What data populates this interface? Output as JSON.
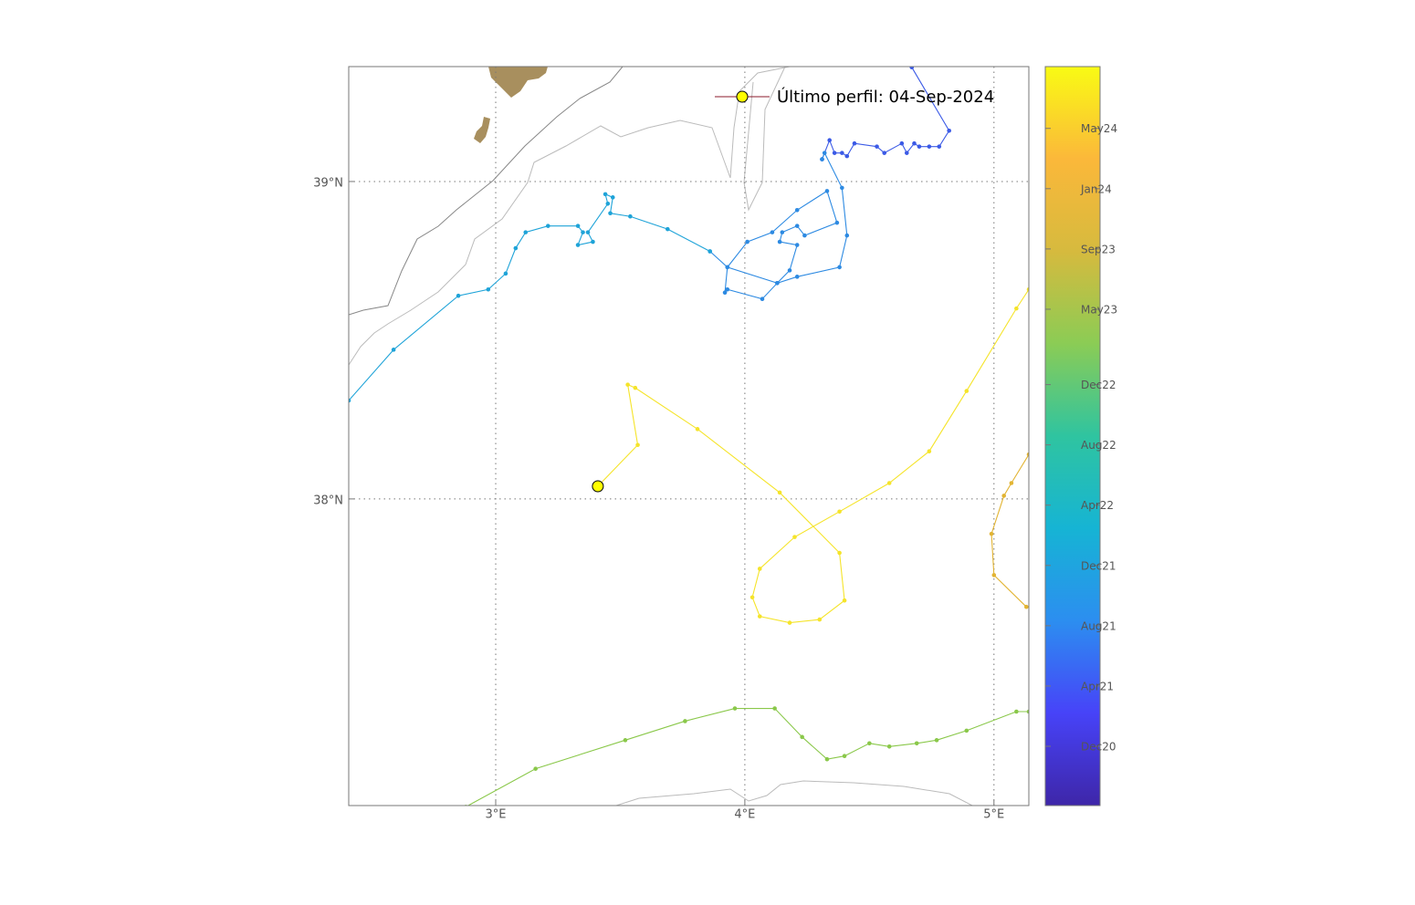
{
  "chart_data": {
    "type": "map",
    "xlim": [
      2.41,
      5.14
    ],
    "ylim": [
      37.034,
      39.362
    ],
    "xticks": [
      {
        "value": 3,
        "label": "3°E"
      },
      {
        "value": 4,
        "label": "4°E"
      },
      {
        "value": 5,
        "label": "5°E"
      }
    ],
    "yticks": [
      {
        "value": 38,
        "label": "38°N"
      },
      {
        "value": 39,
        "label": "39°N"
      }
    ],
    "grid": true,
    "legend": {
      "label": "Último perfil: 04-Sep-2024",
      "position": "upper right"
    },
    "last_profile": {
      "lon": 3.41,
      "lat": 38.04,
      "color": "#ffff00"
    },
    "colorbar": {
      "clim": [
        "2020-08-03",
        "2024-09-04"
      ],
      "ticks": [
        {
          "value": "2020-12-01",
          "label": "Dec20"
        },
        {
          "value": "2021-04-01",
          "label": "Apr21"
        },
        {
          "value": "2021-08-01",
          "label": "Aug21"
        },
        {
          "value": "2021-12-01",
          "label": "Dec21"
        },
        {
          "value": "2022-04-01",
          "label": "Apr22"
        },
        {
          "value": "2022-08-01",
          "label": "Aug22"
        },
        {
          "value": "2022-12-01",
          "label": "Dec22"
        },
        {
          "value": "2023-05-01",
          "label": "May23"
        },
        {
          "value": "2023-09-01",
          "label": "Sep23"
        },
        {
          "value": "2024-01-01",
          "label": "Jan24"
        },
        {
          "value": "2024-05-01",
          "label": "May24"
        }
      ]
    },
    "series": [
      {
        "color": "#3b5ae6",
        "lon": [
          4.67,
          4.82,
          4.78,
          4.74,
          4.7,
          4.68,
          4.65,
          4.63,
          4.56,
          4.53,
          4.44,
          4.41,
          4.39,
          4.36,
          4.34,
          4.31
        ],
        "lat": [
          39.36,
          39.16,
          39.11,
          39.11,
          39.11,
          39.12,
          39.09,
          39.12,
          39.09,
          39.11,
          39.12,
          39.08,
          39.09,
          39.09,
          39.13,
          39.07
        ]
      },
      {
        "color": "#2d8ae2",
        "lon": [
          4.31,
          4.32,
          4.39,
          4.41,
          4.38,
          4.21,
          4.13,
          4.07,
          3.93,
          3.92,
          3.93,
          4.01,
          4.11,
          4.21,
          4.33,
          4.37,
          4.24,
          4.21,
          4.15,
          4.14,
          4.21,
          4.18,
          4.13,
          3.93,
          3.86
        ],
        "lat": [
          39.07,
          39.09,
          38.98,
          38.83,
          38.73,
          38.7,
          38.68,
          38.63,
          38.66,
          38.65,
          38.73,
          38.81,
          38.84,
          38.91,
          38.97,
          38.87,
          38.83,
          38.86,
          38.84,
          38.81,
          38.8,
          38.72,
          38.68,
          38.73,
          38.78
        ]
      },
      {
        "color": "#1ea3d8",
        "lon": [
          3.86,
          3.69,
          3.54,
          3.46,
          3.47,
          3.44,
          3.45,
          3.37,
          3.39,
          3.33,
          3.35,
          3.33,
          3.21,
          3.12,
          3.08,
          3.04,
          2.97,
          2.85,
          2.59,
          2.41
        ],
        "lat": [
          38.78,
          38.85,
          38.89,
          38.9,
          38.95,
          38.96,
          38.93,
          38.84,
          38.81,
          38.8,
          38.84,
          38.86,
          38.86,
          38.84,
          38.79,
          38.71,
          38.66,
          38.64,
          38.47,
          38.31
        ]
      },
      {
        "color": "#8ac84a",
        "lon": [
          2.88,
          3.16,
          3.52,
          3.76,
          3.96,
          4.12,
          4.23,
          4.33,
          4.4,
          4.5,
          4.58,
          4.69,
          4.77,
          4.89,
          5.09,
          5.14
        ],
        "lat": [
          37.03,
          37.15,
          37.24,
          37.3,
          37.34,
          37.34,
          37.25,
          37.18,
          37.19,
          37.23,
          37.22,
          37.23,
          37.24,
          37.27,
          37.33,
          37.33
        ]
      },
      {
        "color": "#e2b433",
        "lon": [
          5.14,
          5.07,
          5.04,
          4.99,
          5.0,
          5.13
        ],
        "lat": [
          38.14,
          38.05,
          38.01,
          37.89,
          37.76,
          37.66
        ]
      },
      {
        "color": "#f5e42a",
        "lon": [
          5.14,
          5.09,
          4.89,
          4.74,
          4.58,
          4.38,
          4.2,
          4.06,
          4.03,
          4.06,
          4.18,
          4.3,
          4.4,
          4.38,
          4.14,
          3.81,
          3.56,
          3.53,
          3.57,
          3.41
        ],
        "lat": [
          38.66,
          38.6,
          38.34,
          38.15,
          38.05,
          37.96,
          37.88,
          37.78,
          37.69,
          37.63,
          37.61,
          37.62,
          37.68,
          37.83,
          38.02,
          38.22,
          38.35,
          38.36,
          38.17,
          38.04
        ]
      }
    ]
  }
}
